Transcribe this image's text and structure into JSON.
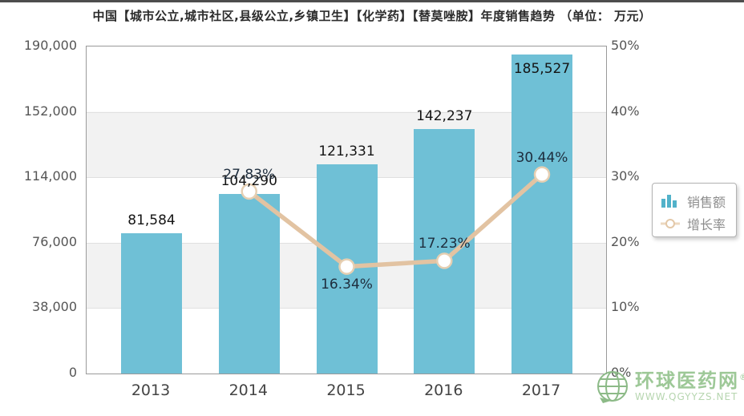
{
  "title": "中国【城市公立,城市社区,县级公立,乡镇卫生】【化学药】【替莫唑胺】年度销售趋势",
  "title_unit": "（单位： 万元）",
  "chart_data": {
    "type": "bar+line",
    "categories": [
      "2013",
      "2014",
      "2015",
      "2016",
      "2017"
    ],
    "series": [
      {
        "name": "销售额",
        "type": "bar",
        "axis": "left",
        "values": [
          81584,
          104290,
          121331,
          142237,
          185527
        ],
        "labels": [
          "81,584",
          "104,290",
          "121,331",
          "142,237",
          "185,527"
        ],
        "color": "#6fc0d6"
      },
      {
        "name": "增长率",
        "type": "line",
        "axis": "right",
        "values": [
          null,
          27.83,
          16.34,
          17.23,
          30.44
        ],
        "labels": [
          null,
          "27.83%",
          "16.34%",
          "17.23%",
          "30.44%"
        ],
        "color": "#e2c3a2",
        "marker": "circle-white"
      }
    ],
    "left_axis": {
      "min": 0,
      "max": 190000,
      "ticks": [
        "0",
        "38,000",
        "76,000",
        "114,000",
        "152,000",
        "190,000"
      ]
    },
    "right_axis": {
      "min": 0,
      "max": 50,
      "ticks": [
        "0%",
        "10%",
        "20%",
        "30%",
        "40%",
        "50%"
      ]
    },
    "legend": {
      "position": "middle-right",
      "items": [
        "销售额",
        "增长率"
      ]
    },
    "grid": "horizontal-bands"
  },
  "watermark": {
    "name": "环球医药网",
    "reg": "®",
    "url": "WWW.QGYYZS.NET"
  },
  "colors": {
    "bar": "#6fc0d6",
    "line": "#e2c3a2",
    "marker_stroke": "#e6cfb2",
    "band_gray": "#f2f2f2",
    "plot_border": "#9a9a9a",
    "watermark_green": "#9dc897"
  }
}
